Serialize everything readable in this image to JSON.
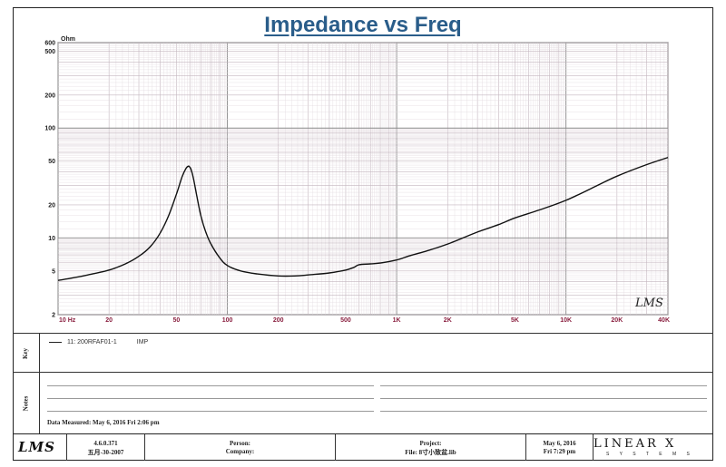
{
  "title": "Impedance vs Freq",
  "chart_data": {
    "type": "line",
    "title": "Impedance vs Freq",
    "xlabel": "Hz",
    "ylabel": "Ohm",
    "x_scale": "log",
    "y_scale": "log",
    "xlim": [
      10,
      40000
    ],
    "ylim": [
      2,
      600
    ],
    "grid": true,
    "y_ticks": [
      {
        "v": 600,
        "label": "600"
      },
      {
        "v": 500,
        "label": "500"
      },
      {
        "v": 200,
        "label": "200"
      },
      {
        "v": 100,
        "label": "100"
      },
      {
        "v": 50,
        "label": "50"
      },
      {
        "v": 20,
        "label": "20"
      },
      {
        "v": 10,
        "label": "10"
      },
      {
        "v": 5,
        "label": "5"
      },
      {
        "v": 2,
        "label": "2"
      }
    ],
    "x_ticks": [
      {
        "v": 20,
        "label": "20"
      },
      {
        "v": 50,
        "label": "50"
      },
      {
        "v": 100,
        "label": "100"
      },
      {
        "v": 200,
        "label": "200"
      },
      {
        "v": 500,
        "label": "500"
      },
      {
        "v": 1000,
        "label": "1K"
      },
      {
        "v": 2000,
        "label": "2K"
      },
      {
        "v": 5000,
        "label": "5K"
      },
      {
        "v": 10000,
        "label": "10K"
      },
      {
        "v": 20000,
        "label": "20K"
      },
      {
        "v": 40000,
        "label": "40K"
      }
    ],
    "x_first_tick_label": "10  Hz",
    "y_unit_label": "Ohm",
    "series": [
      {
        "name": "11: 200RFAF01-1",
        "x": [
          10,
          12,
          15,
          20,
          25,
          30,
          35,
          40,
          45,
          50,
          54,
          57,
          59,
          60,
          61,
          63,
          66,
          70,
          75,
          80,
          90,
          100,
          120,
          150,
          200,
          250,
          300,
          400,
          500,
          560,
          600,
          700,
          800,
          1000,
          1200,
          1500,
          2000,
          3000,
          4000,
          5000,
          7000,
          10000,
          15000,
          20000,
          30000,
          40000
        ],
        "y": [
          4.1,
          4.3,
          4.6,
          5.1,
          5.8,
          6.8,
          8.3,
          11,
          16,
          25,
          36,
          43,
          45,
          44,
          42,
          35,
          24,
          15.5,
          11,
          8.8,
          6.6,
          5.6,
          5.0,
          4.7,
          4.5,
          4.5,
          4.6,
          4.8,
          5.1,
          5.4,
          5.7,
          5.8,
          5.9,
          6.3,
          6.9,
          7.6,
          8.8,
          11.3,
          13.2,
          15.2,
          18.0,
          22.0,
          29.5,
          36.5,
          46.5,
          54
        ]
      }
    ]
  },
  "key": {
    "series_label": "11: 200RFAF01-1",
    "series_kind": "IMP"
  },
  "side_labels": {
    "key": "Key",
    "notes": "Notes"
  },
  "notes": {
    "date_measured": "Data Measured: May 6, 2016  Fri  2:06 pm"
  },
  "watermark": "LMS",
  "footer": {
    "logo": "LMS",
    "version": "4.6.0.371",
    "version_date": "五月-30-2007",
    "person": "Person:",
    "company": "Company:",
    "project": "Project:",
    "file": "File: 8寸小致盆.lib",
    "date": "May 6, 2016",
    "time": "Fri  7:29 pm",
    "brand": "LINEAR X",
    "brand_sub": "S Y S T E M S"
  }
}
